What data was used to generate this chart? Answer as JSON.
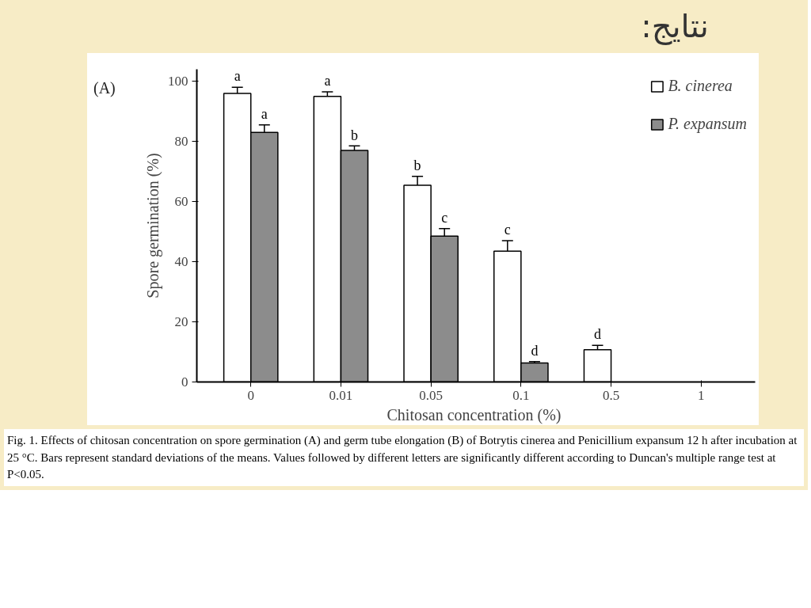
{
  "chart_data": {
    "type": "bar",
    "title": "نتايج:",
    "xlabel": "Chitosan concentration  (%)",
    "ylabel": "Spore germination (%)",
    "categories": [
      "0",
      "0.01",
      "0.05",
      "0.1",
      "0.5",
      "1"
    ],
    "series": [
      {
        "name": "B. cinerea",
        "color": "#ffffff",
        "values": [
          96,
          95,
          65.4,
          43.5,
          10.7,
          0
        ],
        "errors": [
          2,
          1.5,
          3,
          3.5,
          1.5,
          null
        ],
        "value_labels": [
          "a",
          "a",
          "b",
          "c",
          "d",
          null
        ]
      },
      {
        "name": "P. expansum",
        "color": "#8c8c8c",
        "values": [
          83,
          77,
          48.5,
          6.3,
          0,
          0
        ],
        "errors": [
          2.5,
          1.5,
          2.5,
          0.5,
          null,
          null
        ],
        "value_labels": [
          "a",
          "b",
          "c",
          "d",
          null,
          null
        ]
      }
    ],
    "ylim": [
      0,
      104
    ],
    "yticks": [
      0,
      20,
      40,
      60,
      80,
      100
    ],
    "grid": false,
    "legend": "top right",
    "annotations": [
      "(A)",
      "Fig. 1. Effects of chitosan concentration on spore germination (A) and germ tube elongation (B) of Botrytis cinerea and Penicillium expansum 12 h after incubation at 25 °C. Bars represent standard deviations of the means. Values followed by different letters are significantly different according to Duncan's multiple range test at P<0.05."
    ]
  }
}
